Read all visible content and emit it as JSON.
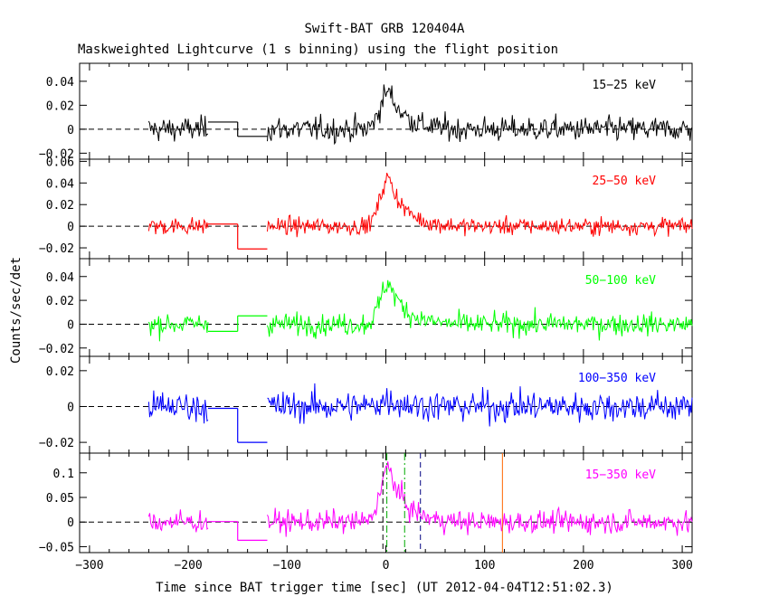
{
  "title": "Swift-BAT GRB 120404A",
  "subtitle": "Maskweighted Lightcurve (1 s binning) using the flight position",
  "xlabel": "Time since BAT trigger time [sec] (UT 2012-04-04T12:51:02.3)",
  "ylabel": "Counts/sec/det",
  "chart_data": {
    "type": "line",
    "xlim": [
      -310,
      310
    ],
    "x_ticks": [
      -300,
      -200,
      -100,
      0,
      100,
      200,
      300
    ],
    "title": "Swift-BAT GRB 120404A",
    "subtitle": "Maskweighted Lightcurve (1 s binning) using the flight position",
    "xlabel": "Time since BAT trigger time [sec] (UT 2012-04-04T12:51:02.3)",
    "ylabel": "Counts/sec/det",
    "data_segments": [
      [
        -240,
        -180
      ],
      [
        -120,
        310
      ]
    ],
    "panels": [
      {
        "band": "15-25 keV",
        "color": "#000000",
        "ylim": [
          -0.025,
          0.055
        ],
        "y_ticks": [
          -0.02,
          0,
          0.02,
          0.04
        ],
        "y_tick_labels": [
          "−0.02",
          "0",
          "0.02",
          "0.04"
        ],
        "noise": 0.009,
        "peak": 0.032,
        "steps": [
          {
            "x": [
              -180,
              -150
            ],
            "y": 0.006
          },
          {
            "x": [
              -150,
              -120
            ],
            "y": -0.006
          }
        ]
      },
      {
        "band": "25-50 keV",
        "color": "#ff0000",
        "ylim": [
          -0.03,
          0.062
        ],
        "y_ticks": [
          -0.02,
          0,
          0.02,
          0.04,
          0.06
        ],
        "y_tick_labels": [
          "−0.02",
          "0",
          "0.02",
          "0.04",
          "0.06"
        ],
        "noise": 0.007,
        "peak": 0.045,
        "steps": [
          {
            "x": [
              -180,
              -150
            ],
            "y": 0.002
          },
          {
            "x": [
              -150,
              -120
            ],
            "y": -0.021
          }
        ]
      },
      {
        "band": "50-100 keV",
        "color": "#00ff00",
        "ylim": [
          -0.027,
          0.055
        ],
        "y_ticks": [
          -0.02,
          0,
          0.02,
          0.04
        ],
        "y_tick_labels": [
          "−0.02",
          "0",
          "0.02",
          "0.04"
        ],
        "noise": 0.008,
        "peak": 0.035,
        "steps": [
          {
            "x": [
              -180,
              -150
            ],
            "y": -0.006
          },
          {
            "x": [
              -150,
              -120
            ],
            "y": 0.007
          }
        ]
      },
      {
        "band": "100-350 keV",
        "color": "#0000ff",
        "ylim": [
          -0.026,
          0.028
        ],
        "y_ticks": [
          -0.02,
          0,
          0.02
        ],
        "y_tick_labels": [
          "−0.02",
          "0",
          "0.02"
        ],
        "noise": 0.0075,
        "peak": 0.004,
        "steps": [
          {
            "x": [
              -180,
              -150
            ],
            "y": -0.001
          },
          {
            "x": [
              -150,
              -120
            ],
            "y": -0.02
          }
        ]
      },
      {
        "band": "15-350 keV",
        "color": "#ff00ff",
        "ylim": [
          -0.062,
          0.14
        ],
        "y_ticks": [
          -0.05,
          0,
          0.05,
          0.1
        ],
        "y_tick_labels": [
          "−0.05",
          "0",
          "0.05",
          "0.1"
        ],
        "noise": 0.02,
        "peak": 0.11,
        "steps": [
          {
            "x": [
              -180,
              -150
            ],
            "y": 0.001
          },
          {
            "x": [
              -150,
              -120
            ],
            "y": -0.037
          }
        ],
        "vlines": [
          {
            "x": -3,
            "color": "#000000",
            "style": "dash"
          },
          {
            "x": 1,
            "color": "#00aa00",
            "style": "dashdot"
          },
          {
            "x": 19,
            "color": "#00aa00",
            "style": "dashdot"
          },
          {
            "x": 35,
            "color": "#000080",
            "style": "dash"
          },
          {
            "x": 118,
            "color": "#ff6600",
            "style": "solid"
          }
        ]
      }
    ]
  }
}
